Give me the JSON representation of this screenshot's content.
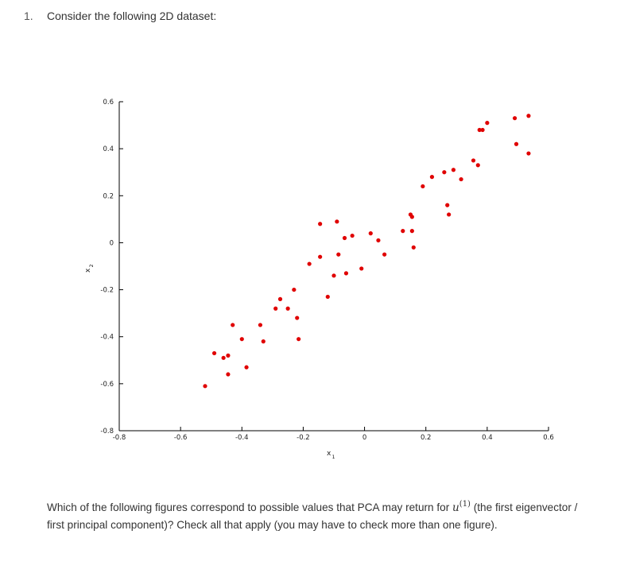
{
  "question": {
    "number": "1.",
    "title": "Consider the following 2D dataset:",
    "prompt_before": "Which of the following figures correspond to possible values that PCA may return for ",
    "symbol": "u",
    "superscript": "(1)",
    "prompt_after": " (the first eigenvector / first principal component)? Check all that apply (you may have to check more than one figure)."
  },
  "chart_data": {
    "type": "scatter",
    "xlabel": "x",
    "xlabel_sub": "1",
    "ylabel": "x",
    "ylabel_sub": "2",
    "xlim": [
      -0.8,
      0.6
    ],
    "ylim": [
      -0.8,
      0.6
    ],
    "x_ticks": [
      "-0.8",
      "-0.6",
      "-0.4",
      "-0.2",
      "0",
      "0.2",
      "0.4",
      "0.6"
    ],
    "y_ticks": [
      "0.6",
      "0.4",
      "0.2",
      "0",
      "-0.2",
      "-0.4",
      "-0.6",
      "-0.8"
    ],
    "grid": false,
    "marker_color": "#e00000",
    "points": [
      [
        -0.52,
        -0.61
      ],
      [
        -0.49,
        -0.47
      ],
      [
        -0.46,
        -0.49
      ],
      [
        -0.445,
        -0.48
      ],
      [
        -0.445,
        -0.56
      ],
      [
        -0.43,
        -0.35
      ],
      [
        -0.4,
        -0.41
      ],
      [
        -0.385,
        -0.53
      ],
      [
        -0.34,
        -0.35
      ],
      [
        -0.33,
        -0.42
      ],
      [
        -0.29,
        -0.28
      ],
      [
        -0.275,
        -0.24
      ],
      [
        -0.25,
        -0.28
      ],
      [
        -0.23,
        -0.2
      ],
      [
        -0.22,
        -0.32
      ],
      [
        -0.215,
        -0.41
      ],
      [
        -0.18,
        -0.09
      ],
      [
        -0.145,
        -0.06
      ],
      [
        -0.145,
        0.08
      ],
      [
        -0.12,
        -0.23
      ],
      [
        -0.1,
        -0.14
      ],
      [
        -0.09,
        0.09
      ],
      [
        -0.085,
        -0.05
      ],
      [
        -0.065,
        0.02
      ],
      [
        -0.06,
        -0.13
      ],
      [
        -0.04,
        0.03
      ],
      [
        -0.01,
        -0.11
      ],
      [
        0.02,
        0.04
      ],
      [
        0.045,
        0.01
      ],
      [
        0.065,
        -0.05
      ],
      [
        0.125,
        0.05
      ],
      [
        0.15,
        0.12
      ],
      [
        0.155,
        0.11
      ],
      [
        0.155,
        0.05
      ],
      [
        0.16,
        -0.02
      ],
      [
        0.19,
        0.24
      ],
      [
        0.22,
        0.28
      ],
      [
        0.26,
        0.3
      ],
      [
        0.27,
        0.16
      ],
      [
        0.275,
        0.12
      ],
      [
        0.29,
        0.31
      ],
      [
        0.315,
        0.27
      ],
      [
        0.355,
        0.35
      ],
      [
        0.37,
        0.33
      ],
      [
        0.375,
        0.48
      ],
      [
        0.385,
        0.48
      ],
      [
        0.4,
        0.51
      ],
      [
        0.49,
        0.53
      ],
      [
        0.495,
        0.42
      ],
      [
        0.535,
        0.54
      ],
      [
        0.535,
        0.38
      ]
    ]
  }
}
